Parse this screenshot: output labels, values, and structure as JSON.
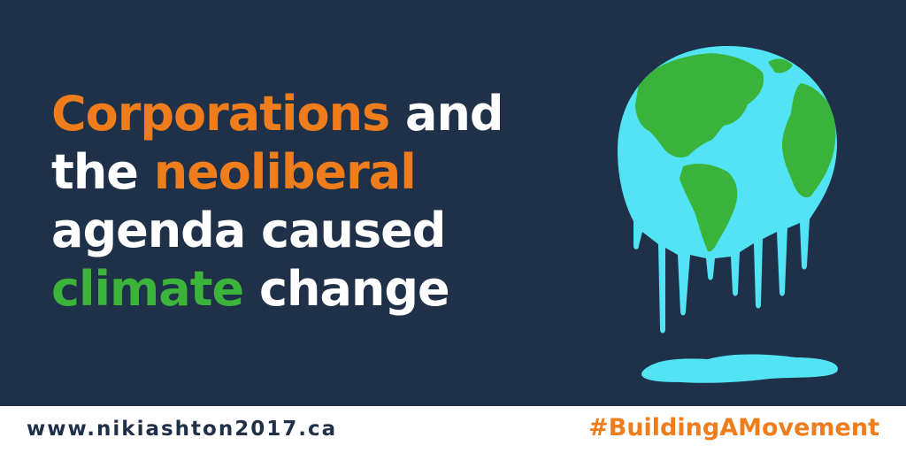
{
  "colors": {
    "background": "#1f3049",
    "footer_background": "#ffffff",
    "headline_white": "#ffffff",
    "highlight_orange": "#f07d1b",
    "highlight_green": "#3cb43a",
    "footer_text_navy": "#1f3049",
    "globe_water": "#52e3f5",
    "globe_land": "#3ab33a"
  },
  "headline": {
    "line1": {
      "w1": "Corporations",
      "w2": " and"
    },
    "line2": {
      "w1": "the ",
      "w2": "neoliberal"
    },
    "line3": {
      "w1": "agenda caused"
    },
    "line4": {
      "w1": "climate",
      "w2": " change"
    }
  },
  "footer": {
    "url": "www.nikiashton2017.ca",
    "hashtag": "#BuildingAMovement"
  },
  "illustration": "melting-globe"
}
